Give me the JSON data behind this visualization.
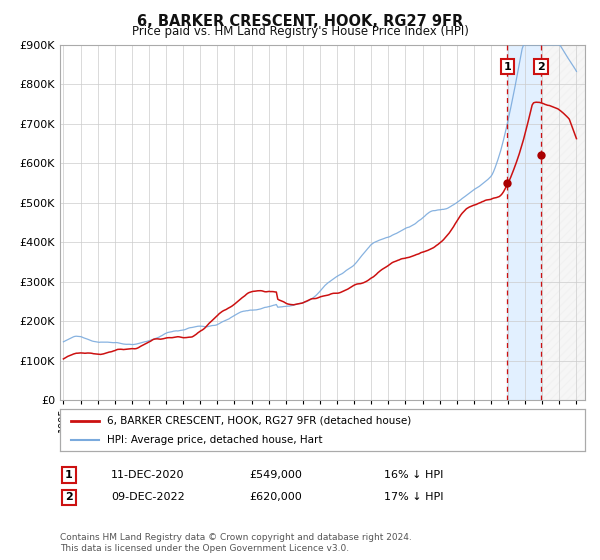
{
  "title": "6, BARKER CRESCENT, HOOK, RG27 9FR",
  "subtitle": "Price paid vs. HM Land Registry's House Price Index (HPI)",
  "legend_line1": "6, BARKER CRESCENT, HOOK, RG27 9FR (detached house)",
  "legend_line2": "HPI: Average price, detached house, Hart",
  "annotation1_label": "1",
  "annotation1_date": "11-DEC-2020",
  "annotation1_price": "£549,000",
  "annotation1_hpi": "16% ↓ HPI",
  "annotation2_label": "2",
  "annotation2_date": "09-DEC-2022",
  "annotation2_price": "£620,000",
  "annotation2_hpi": "17% ↓ HPI",
  "footer": "Contains HM Land Registry data © Crown copyright and database right 2024.\nThis data is licensed under the Open Government Licence v3.0.",
  "hpi_color": "#7aaadd",
  "price_color": "#cc1111",
  "marker_color": "#aa0000",
  "point1_year": 2020.95,
  "point1_value": 549000,
  "point2_year": 2022.92,
  "point2_value": 620000,
  "vline1_year": 2020.95,
  "vline2_year": 2022.92,
  "shade_start": 2020.95,
  "shade_end": 2022.92,
  "hatch_start": 2022.92,
  "hatch_end": 2025.5,
  "ymin": 0,
  "ymax": 900000,
  "xmin": 1994.8,
  "xmax": 2025.5,
  "yticks": [
    0,
    100000,
    200000,
    300000,
    400000,
    500000,
    600000,
    700000,
    800000,
    900000
  ],
  "ytick_labels": [
    "£0",
    "£100K",
    "£200K",
    "£300K",
    "£400K",
    "£500K",
    "£600K",
    "£700K",
    "£800K",
    "£900K"
  ],
  "background_color": "#ffffff",
  "grid_color": "#cccccc",
  "shade_color": "#ddeeff",
  "hatch_color": "#e8e8e8"
}
